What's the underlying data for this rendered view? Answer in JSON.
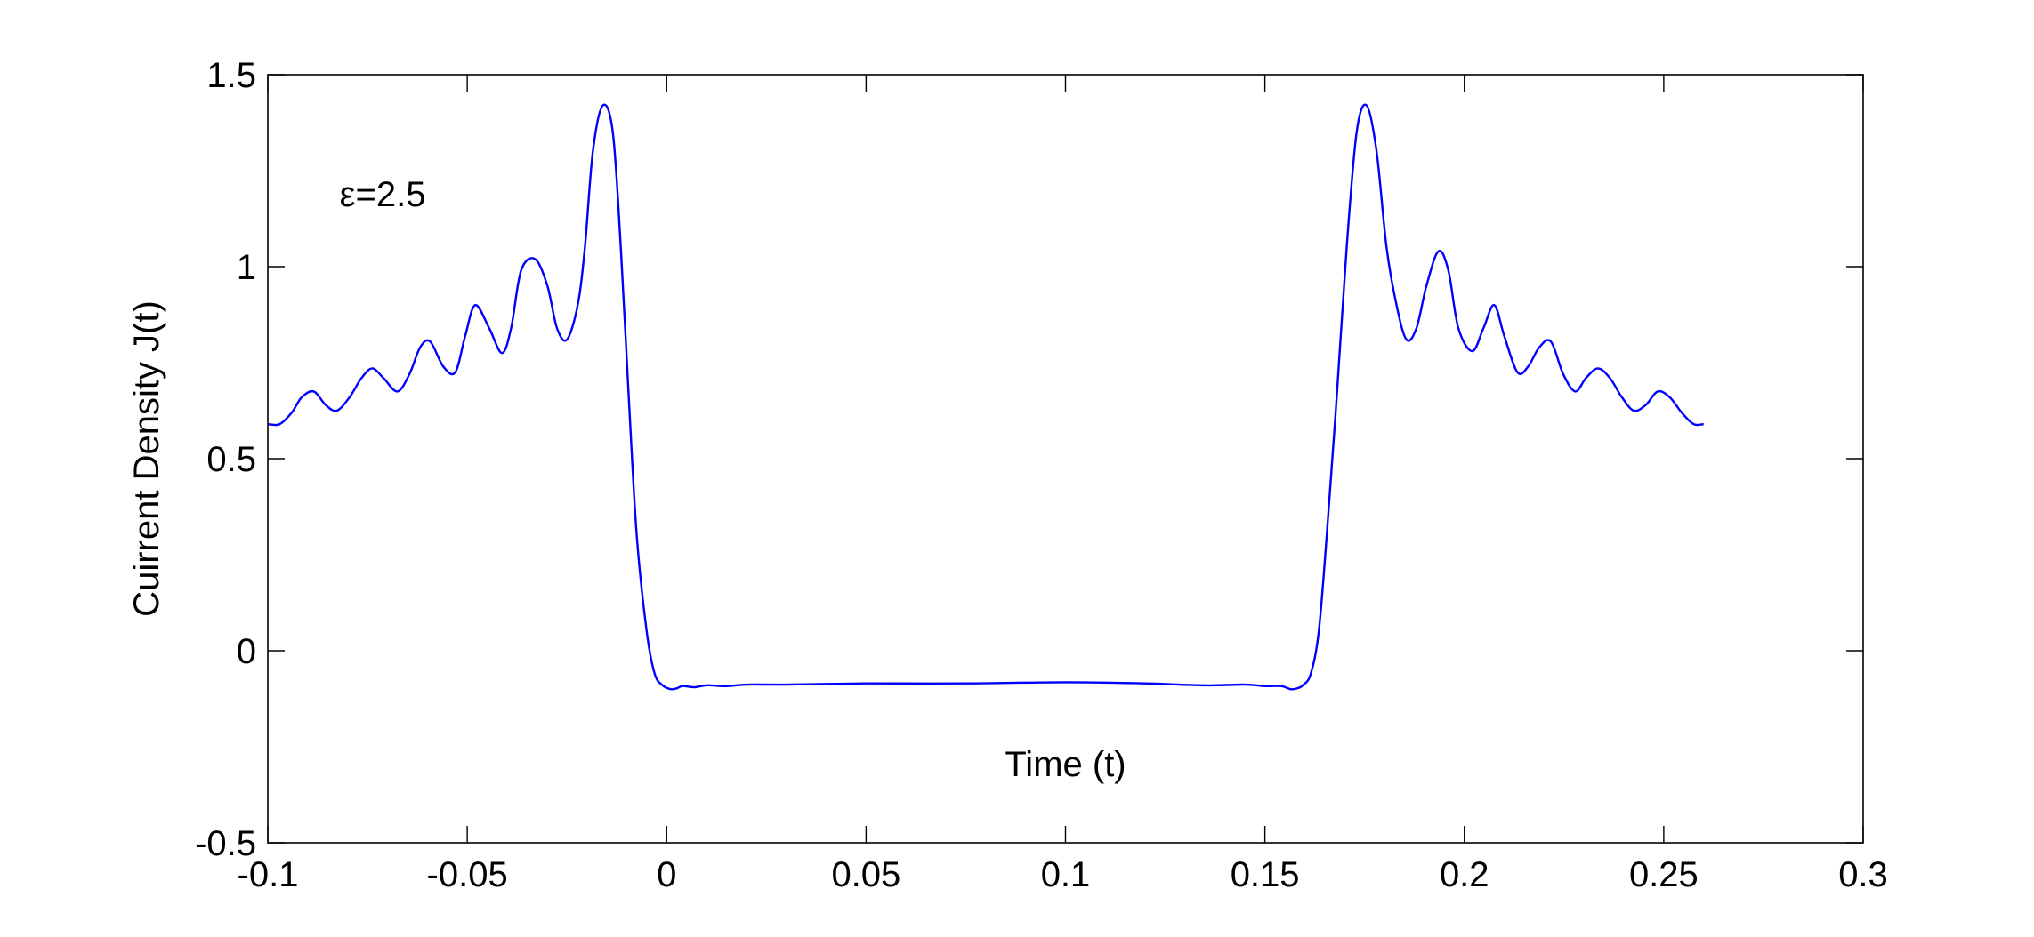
{
  "chart_data": {
    "type": "line",
    "title": "",
    "xlabel": "Time (t)",
    "ylabel": "Cuirrent Density J(t)",
    "xlim": [
      -0.1,
      0.3
    ],
    "ylim": [
      -0.5,
      1.5
    ],
    "xticks": [
      -0.1,
      -0.05,
      0,
      0.05,
      0.1,
      0.15,
      0.2,
      0.25,
      0.3
    ],
    "yticks": [
      -0.5,
      0,
      0.5,
      1,
      1.5
    ],
    "xtick_labels": [
      "-0.1",
      "-0.05",
      "0",
      "0.05",
      "0.1",
      "0.15",
      "0.2",
      "0.25",
      "0.3"
    ],
    "ytick_labels": [
      "-0.5",
      "0",
      "0.5",
      "1",
      "1.5"
    ],
    "grid": false,
    "annotation": {
      "text": "ε=2.5",
      "x": -0.082,
      "y": 1.19
    },
    "series": [
      {
        "color": "#0000ff",
        "x": [
          -0.1,
          -0.097,
          -0.094,
          -0.0915,
          -0.0885,
          -0.0855,
          -0.0827,
          -0.0795,
          -0.0765,
          -0.0738,
          -0.071,
          -0.0675,
          -0.0645,
          -0.0618,
          -0.0593,
          -0.056,
          -0.053,
          -0.0505,
          -0.048,
          -0.0445,
          -0.0413,
          -0.039,
          -0.0365,
          -0.033,
          -0.0299,
          -0.0275,
          -0.025,
          -0.0223,
          -0.0205,
          -0.0185,
          -0.016,
          -0.0135,
          -0.0115,
          -0.0095,
          -0.0075,
          -0.005,
          -0.003,
          -0.001,
          0.001,
          0.0025,
          0.004,
          0.007,
          0.01,
          0.015,
          0.02,
          0.03,
          0.05,
          0.075,
          0.1,
          0.12,
          0.135,
          0.145,
          0.15,
          0.154,
          0.1565,
          0.158,
          0.1595,
          0.1615,
          0.1635,
          0.1655,
          0.168,
          0.1705,
          0.173,
          0.1755,
          0.178,
          0.1805,
          0.183,
          0.1855,
          0.188,
          0.1905,
          0.1935,
          0.196,
          0.1985,
          0.202,
          0.2048,
          0.2075,
          0.21,
          0.2133,
          0.216,
          0.2188,
          0.2217,
          0.2248,
          0.2278,
          0.2305,
          0.2335,
          0.2365,
          0.2395,
          0.2425,
          0.2455,
          0.2485,
          0.2515,
          0.2545,
          0.2575,
          0.26
        ],
        "y": [
          0.59,
          0.59,
          0.62,
          0.66,
          0.675,
          0.64,
          0.625,
          0.66,
          0.71,
          0.735,
          0.71,
          0.675,
          0.72,
          0.79,
          0.805,
          0.74,
          0.725,
          0.82,
          0.9,
          0.84,
          0.775,
          0.84,
          0.99,
          1.02,
          0.95,
          0.84,
          0.81,
          0.9,
          1.05,
          1.3,
          1.42,
          1.35,
          1.05,
          0.66,
          0.3,
          0.05,
          -0.06,
          -0.09,
          -0.1,
          -0.098,
          -0.092,
          -0.095,
          -0.09,
          -0.092,
          -0.088,
          -0.088,
          -0.085,
          -0.085,
          -0.082,
          -0.085,
          -0.09,
          -0.088,
          -0.092,
          -0.092,
          -0.1,
          -0.098,
          -0.09,
          -0.06,
          0.05,
          0.3,
          0.66,
          1.05,
          1.35,
          1.42,
          1.3,
          1.05,
          0.9,
          0.81,
          0.84,
          0.95,
          1.04,
          0.99,
          0.84,
          0.78,
          0.84,
          0.9,
          0.82,
          0.725,
          0.74,
          0.79,
          0.805,
          0.72,
          0.675,
          0.71,
          0.735,
          0.71,
          0.66,
          0.625,
          0.64,
          0.675,
          0.66,
          0.62,
          0.59,
          0.59
        ]
      }
    ]
  }
}
